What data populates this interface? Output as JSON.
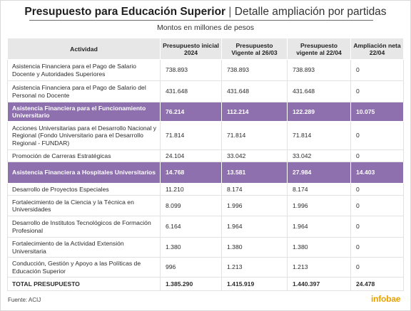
{
  "title": {
    "bold": "Presupuesto para Educación Superior",
    "separator": "|",
    "light": "Detalle ampliación por partidas"
  },
  "subtitle": "Montos en millones de pesos",
  "headers": [
    "Actividad",
    "Presupuesto inicial 2024",
    "Presupuesto Vigente al 26/03",
    "Presupuesto vigente al 22/04",
    "Ampliación neta 22/04"
  ],
  "rows": [
    {
      "actividad": "Asistencia Financiera para el Pago de Salario Docente y Autoridades Superiores",
      "inicial": "738.893",
      "vig2603": "738.893",
      "vig2204": "738.893",
      "ampliacion": "0",
      "highlight": false
    },
    {
      "actividad": "Asistencia Financiera para el Pago de Salario del Personal no Docente",
      "inicial": "431.648",
      "vig2603": "431.648",
      "vig2204": "431.648",
      "ampliacion": "0",
      "highlight": false
    },
    {
      "actividad": "Asistencia Financiera para el Funcionamiento Universitario",
      "inicial": "76.214",
      "vig2603": "112.214",
      "vig2204": "122.289",
      "ampliacion": "10.075",
      "highlight": true
    },
    {
      "actividad": "Acciones Universitarias para el Desarrollo Nacional y Regional (Fondo Universitario para el Desarrollo Regional - FUNDAR)",
      "inicial": "71.814",
      "vig2603": "71.814",
      "vig2204": "71.814",
      "ampliacion": "0",
      "highlight": false
    },
    {
      "actividad": "Promoción de Carreras Estratégicas",
      "inicial": "24.104",
      "vig2603": "33.042",
      "vig2204": "33.042",
      "ampliacion": "0",
      "highlight": false
    },
    {
      "actividad": "Asistencia Financiera a Hospitales Universitarios",
      "inicial": "14.768",
      "vig2603": "13.581",
      "vig2204": "27.984",
      "ampliacion": "14.403",
      "highlight": true
    },
    {
      "actividad": "Desarrollo de Proyectos Especiales",
      "inicial": "11.210",
      "vig2603": "8.174",
      "vig2204": "8.174",
      "ampliacion": "0",
      "highlight": false
    },
    {
      "actividad": "Fortalecimiento de la Ciencia y la Técnica en Universidades",
      "inicial": "8.099",
      "vig2603": "1.996",
      "vig2204": "1.996",
      "ampliacion": "0",
      "highlight": false
    },
    {
      "actividad": "Desarrollo de Institutos Tecnológicos de Formación Profesional",
      "inicial": "6.164",
      "vig2603": "1.964",
      "vig2204": "1.964",
      "ampliacion": "0",
      "highlight": false
    },
    {
      "actividad": "Fortalecimiento de la Actividad Extensión Universitaria",
      "inicial": "1.380",
      "vig2603": "1.380",
      "vig2204": "1.380",
      "ampliacion": "0",
      "highlight": false
    },
    {
      "actividad": "Conducción, Gestión y Apoyo a las Políticas de Educación Superior",
      "inicial": "996",
      "vig2603": "1.213",
      "vig2204": "1.213",
      "ampliacion": "0",
      "highlight": false
    }
  ],
  "total": {
    "actividad": "TOTAL PRESUPUESTO",
    "inicial": "1.385.290",
    "vig2603": "1.415.919",
    "vig2204": "1.440.397",
    "ampliacion": "24.478"
  },
  "source": "Fuente: ACIJ",
  "logo": "infobae",
  "colors": {
    "highlight": "#8d70ad",
    "header_bg": "#e7e7e7",
    "logo": "#e8a200"
  }
}
